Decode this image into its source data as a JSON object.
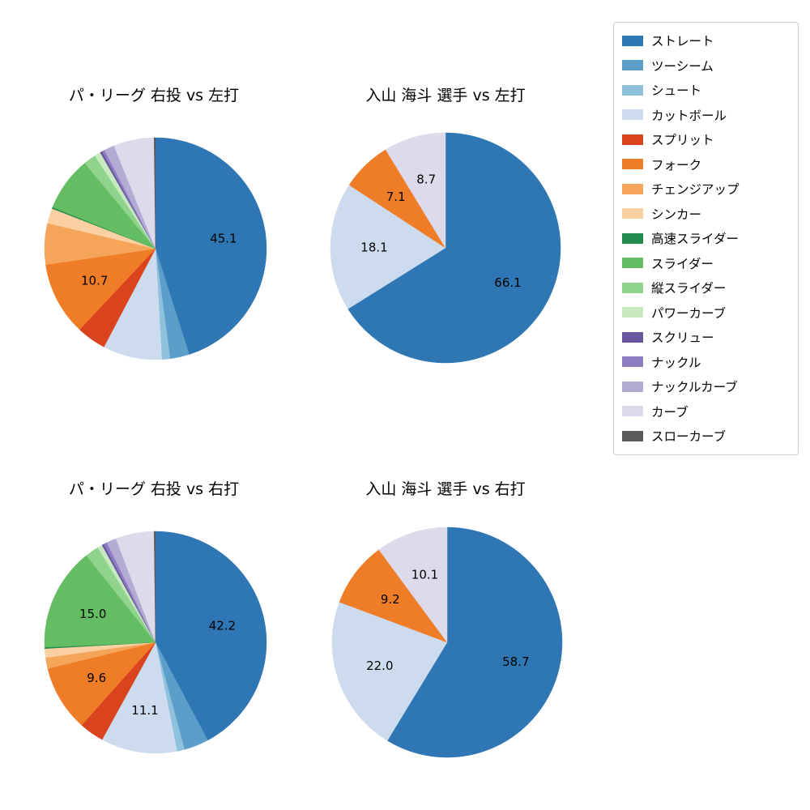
{
  "figure": {
    "background": "#ffffff"
  },
  "chart_data": [
    {
      "type": "pie",
      "title": "パ・リーグ 右投 vs 左打",
      "start_angle": 90,
      "direction": "clockwise",
      "radius": 137,
      "slices": [
        {
          "name": "ストレート",
          "value": 45.1,
          "label": "45.1"
        },
        {
          "name": "ツーシーム",
          "value": 2.8
        },
        {
          "name": "シュート",
          "value": 1.2
        },
        {
          "name": "カットボール",
          "value": 8.6
        },
        {
          "name": "スプリット",
          "value": 4.3
        },
        {
          "name": "フォーク",
          "value": 10.7,
          "label": "10.7"
        },
        {
          "name": "チェンジアップ",
          "value": 6.0
        },
        {
          "name": "シンカー",
          "value": 2.2
        },
        {
          "name": "高速スライダー",
          "value": 0.2
        },
        {
          "name": "スライダー",
          "value": 7.9
        },
        {
          "name": "縦スライダー",
          "value": 1.8
        },
        {
          "name": "パワーカーブ",
          "value": 0.9
        },
        {
          "name": "スクリュー",
          "value": 0.3
        },
        {
          "name": "ナックル",
          "value": 0.4
        },
        {
          "name": "ナックルカーブ",
          "value": 1.5
        },
        {
          "name": "カーブ",
          "value": 5.9
        },
        {
          "name": "スローカーブ",
          "value": 0.2
        }
      ]
    },
    {
      "type": "pie",
      "title": "入山 海斗 選手 vs 左打",
      "start_angle": 90,
      "direction": "clockwise",
      "radius": 142,
      "slices": [
        {
          "name": "ストレート",
          "value": 66.1,
          "label": "66.1"
        },
        {
          "name": "カットボール",
          "value": 18.1,
          "label": "18.1"
        },
        {
          "name": "フォーク",
          "value": 7.1,
          "label": "7.1"
        },
        {
          "name": "カーブ",
          "value": 8.7,
          "label": "8.7"
        }
      ]
    },
    {
      "type": "pie",
      "title": "パ・リーグ 右投 vs 右打",
      "start_angle": 90,
      "direction": "clockwise",
      "radius": 137,
      "slices": [
        {
          "name": "ストレート",
          "value": 42.2,
          "label": "42.2"
        },
        {
          "name": "ツーシーム",
          "value": 3.6
        },
        {
          "name": "シュート",
          "value": 1.1
        },
        {
          "name": "カットボール",
          "value": 11.1,
          "label": "11.1"
        },
        {
          "name": "スプリット",
          "value": 3.6
        },
        {
          "name": "フォーク",
          "value": 9.6,
          "label": "9.6"
        },
        {
          "name": "チェンジアップ",
          "value": 1.6
        },
        {
          "name": "シンカー",
          "value": 1.3
        },
        {
          "name": "高速スライダー",
          "value": 0.2
        },
        {
          "name": "スライダー",
          "value": 15.0,
          "label": "15.0"
        },
        {
          "name": "縦スライダー",
          "value": 2.0
        },
        {
          "name": "パワーカーブ",
          "value": 0.7
        },
        {
          "name": "スクリュー",
          "value": 0.3
        },
        {
          "name": "ナックル",
          "value": 0.5
        },
        {
          "name": "ナックルカーブ",
          "value": 1.4
        },
        {
          "name": "カーブ",
          "value": 5.6
        },
        {
          "name": "スローカーブ",
          "value": 0.2
        }
      ]
    },
    {
      "type": "pie",
      "title": "入山 海斗 選手 vs 右打",
      "start_angle": 90,
      "direction": "clockwise",
      "radius": 142,
      "slices": [
        {
          "name": "ストレート",
          "value": 58.7,
          "label": "58.7"
        },
        {
          "name": "カットボール",
          "value": 22.0,
          "label": "22.0"
        },
        {
          "name": "フォーク",
          "value": 9.2,
          "label": "9.2"
        },
        {
          "name": "カーブ",
          "value": 10.1,
          "label": "10.1"
        }
      ]
    }
  ],
  "legend": {
    "position": "upper right",
    "items": [
      {
        "name": "ストレート",
        "color": "#2f77b4"
      },
      {
        "name": "ツーシーム",
        "color": "#5b9ec9"
      },
      {
        "name": "シュート",
        "color": "#8fc1dd"
      },
      {
        "name": "カットボール",
        "color": "#ccdcee"
      },
      {
        "name": "スプリット",
        "color": "#d9441f"
      },
      {
        "name": "フォーク",
        "color": "#ef7d28"
      },
      {
        "name": "チェンジアップ",
        "color": "#f5a559"
      },
      {
        "name": "シンカー",
        "color": "#fbd1a4"
      },
      {
        "name": "高速スライダー",
        "color": "#218b4b"
      },
      {
        "name": "スライダー",
        "color": "#65bd63"
      },
      {
        "name": "縦スライダー",
        "color": "#90d38c"
      },
      {
        "name": "パワーカーブ",
        "color": "#c7e9c0"
      },
      {
        "name": "スクリュー",
        "color": "#68569e"
      },
      {
        "name": "ナックル",
        "color": "#8e7cc0"
      },
      {
        "name": "ナックルカーブ",
        "color": "#b3abd4"
      },
      {
        "name": "カーブ",
        "color": "#dcdaeb"
      },
      {
        "name": "スローカーブ",
        "color": "#58595b"
      }
    ]
  }
}
